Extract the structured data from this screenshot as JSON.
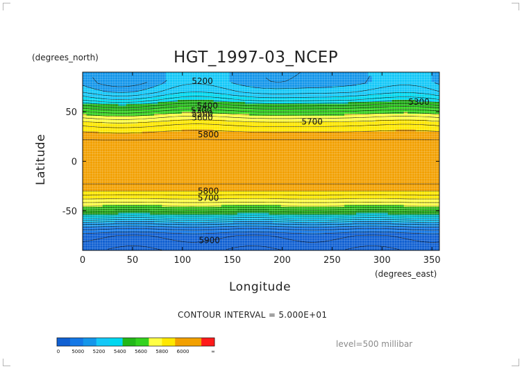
{
  "chart_data": {
    "type": "heatmap",
    "title": "HGT_1997-03_NCEP",
    "xlabel": "Longitude",
    "ylabel": "Latitude",
    "x_unit": "(degrees_east)",
    "y_unit": "(degrees_north)",
    "xlim": [
      0,
      357.5
    ],
    "ylim": [
      -90,
      90
    ],
    "x_ticks": [
      0,
      50,
      100,
      150,
      200,
      250,
      300,
      350
    ],
    "y_ticks": [
      50,
      0,
      -50
    ],
    "contour_interval_text": "CONTOUR INTERVAL = 5.000E+01",
    "level_text": "level=500 millibar",
    "bands": [
      {
        "min": 6000,
        "max": 6100,
        "color": "#ff1a1a"
      },
      {
        "min": 5900,
        "max": 6000,
        "color": "#f2a000"
      },
      {
        "min": 5800,
        "max": 5900,
        "color": "#f2a000"
      },
      {
        "min": 5700,
        "max": 5800,
        "color": "#ffe800"
      },
      {
        "min": 5600,
        "max": 5700,
        "color": "#ffff44"
      },
      {
        "min": 5500,
        "max": 5600,
        "color": "#33d21e"
      },
      {
        "min": 5400,
        "max": 5500,
        "color": "#22b818"
      },
      {
        "min": 5300,
        "max": 5400,
        "color": "#00d8f0"
      },
      {
        "min": 5200,
        "max": 5300,
        "color": "#14c8f8"
      },
      {
        "min": 5100,
        "max": 5200,
        "color": "#1496ea"
      },
      {
        "min": 5000,
        "max": 5100,
        "color": "#1478e6"
      },
      {
        "min": 0,
        "max": 5000,
        "color": "#1060d2"
      }
    ],
    "zonal_profile": [
      {
        "lat": 90,
        "value": 5180
      },
      {
        "lat": 80,
        "value": 5180
      },
      {
        "lat": 70,
        "value": 5250
      },
      {
        "lat": 62,
        "value": 5350
      },
      {
        "lat": 56,
        "value": 5460
      },
      {
        "lat": 50,
        "value": 5560
      },
      {
        "lat": 44,
        "value": 5650
      },
      {
        "lat": 38,
        "value": 5730
      },
      {
        "lat": 30,
        "value": 5800
      },
      {
        "lat": 20,
        "value": 5860
      },
      {
        "lat": 0,
        "value": 5880
      },
      {
        "lat": -20,
        "value": 5870
      },
      {
        "lat": -30,
        "value": 5800
      },
      {
        "lat": -38,
        "value": 5700
      },
      {
        "lat": -45,
        "value": 5600
      },
      {
        "lat": -50,
        "value": 5480
      },
      {
        "lat": -56,
        "value": 5330
      },
      {
        "lat": -62,
        "value": 5180
      },
      {
        "lat": -68,
        "value": 5060
      },
      {
        "lat": -75,
        "value": 4960
      },
      {
        "lat": -90,
        "value": 4900
      }
    ],
    "contour_labels": [
      {
        "text": "5200",
        "lon": 120,
        "lat": 81
      },
      {
        "text": "5400",
        "lon": 125,
        "lat": 56
      },
      {
        "text": "5300",
        "lon": 119,
        "lat": 51
      },
      {
        "text": "5500",
        "lon": 120,
        "lat": 48
      },
      {
        "text": "5600",
        "lon": 120,
        "lat": 44
      },
      {
        "text": "5700",
        "lon": 230,
        "lat": 40
      },
      {
        "text": "5300",
        "lon": 337,
        "lat": 60
      },
      {
        "text": "5800",
        "lon": 126,
        "lat": 27
      },
      {
        "text": "5800",
        "lon": 126,
        "lat": -30
      },
      {
        "text": "5700",
        "lon": 126,
        "lat": -37
      },
      {
        "text": "5900",
        "lon": 127,
        "lat": -80
      }
    ],
    "colorbar": {
      "labels": [
        "0",
        "5000",
        "5200",
        "5400",
        "5600",
        "5800",
        "6000",
        "∞"
      ],
      "colors": [
        "#1060d2",
        "#1478e6",
        "#1496ea",
        "#14c8f8",
        "#00d8f0",
        "#22b818",
        "#33d21e",
        "#ffff44",
        "#ffe800",
        "#f2a000",
        "#f2a000",
        "#ff1a1a"
      ]
    }
  }
}
